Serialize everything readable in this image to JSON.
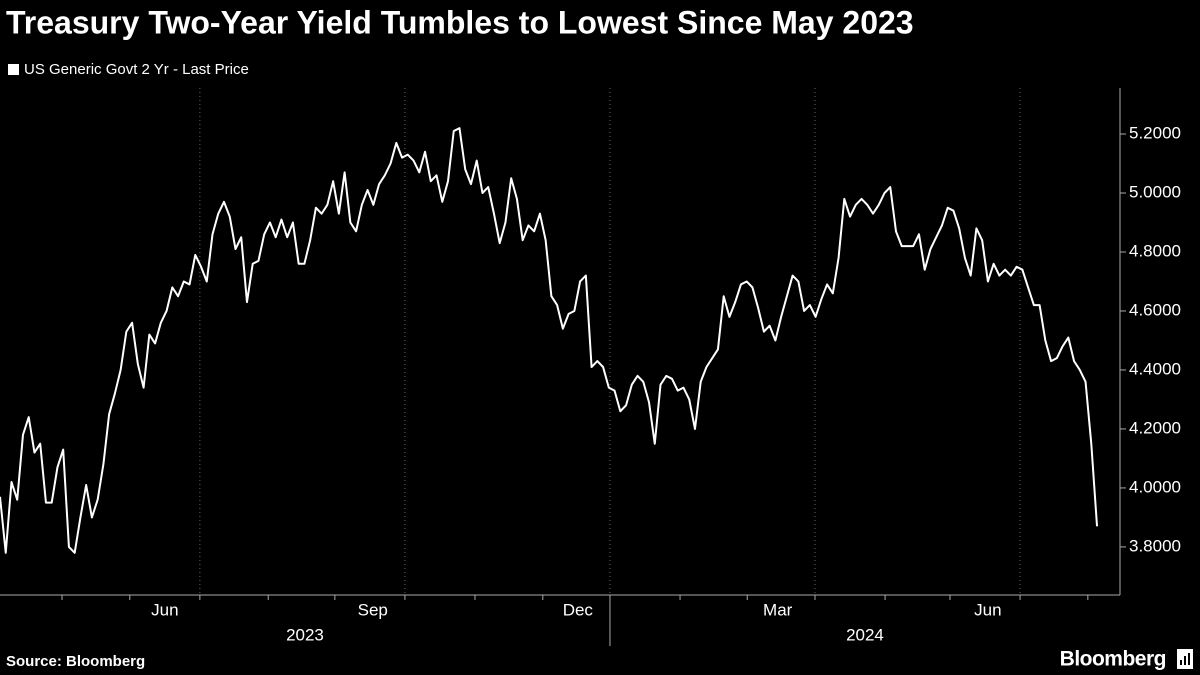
{
  "chart_data": {
    "type": "line",
    "title": "Treasury Two-Year Yield Tumbles to Lowest Since May 2023",
    "series": [
      {
        "name": "US Generic Govt 2 Yr - Last Price",
        "color": "#ffffff",
        "values": [
          3.97,
          3.78,
          4.02,
          3.96,
          4.18,
          4.24,
          4.12,
          4.15,
          3.95,
          3.95,
          4.07,
          4.13,
          3.8,
          3.78,
          3.9,
          4.01,
          3.9,
          3.96,
          4.08,
          4.25,
          4.32,
          4.4,
          4.53,
          4.56,
          4.42,
          4.34,
          4.52,
          4.49,
          4.56,
          4.6,
          4.68,
          4.65,
          4.7,
          4.69,
          4.79,
          4.75,
          4.7,
          4.86,
          4.93,
          4.97,
          4.92,
          4.81,
          4.85,
          4.63,
          4.76,
          4.77,
          4.86,
          4.9,
          4.85,
          4.91,
          4.85,
          4.9,
          4.76,
          4.76,
          4.84,
          4.95,
          4.93,
          4.96,
          5.04,
          4.93,
          5.07,
          4.9,
          4.87,
          4.96,
          5.01,
          4.96,
          5.03,
          5.06,
          5.1,
          5.17,
          5.12,
          5.13,
          5.11,
          5.07,
          5.14,
          5.04,
          5.06,
          4.97,
          5.04,
          5.21,
          5.22,
          5.08,
          5.03,
          5.11,
          5.0,
          5.02,
          4.93,
          4.83,
          4.9,
          5.05,
          4.98,
          4.84,
          4.89,
          4.87,
          4.93,
          4.84,
          4.65,
          4.62,
          4.54,
          4.59,
          4.6,
          4.7,
          4.72,
          4.41,
          4.43,
          4.41,
          4.34,
          4.33,
          4.26,
          4.28,
          4.35,
          4.38,
          4.36,
          4.29,
          4.15,
          4.35,
          4.38,
          4.37,
          4.33,
          4.34,
          4.3,
          4.2,
          4.36,
          4.41,
          4.44,
          4.47,
          4.65,
          4.58,
          4.63,
          4.69,
          4.7,
          4.68,
          4.61,
          4.53,
          4.55,
          4.5,
          4.58,
          4.65,
          4.72,
          4.7,
          4.6,
          4.62,
          4.58,
          4.64,
          4.69,
          4.66,
          4.78,
          4.98,
          4.92,
          4.96,
          4.98,
          4.96,
          4.93,
          4.96,
          5.0,
          5.02,
          4.87,
          4.82,
          4.82,
          4.82,
          4.86,
          4.74,
          4.81,
          4.85,
          4.89,
          4.95,
          4.94,
          4.88,
          4.78,
          4.72,
          4.88,
          4.84,
          4.7,
          4.76,
          4.72,
          4.74,
          4.72,
          4.75,
          4.74,
          4.68,
          4.62,
          4.62,
          4.5,
          4.43,
          4.44,
          4.48,
          4.51,
          4.43,
          4.4,
          4.36,
          4.15,
          3.87
        ]
      }
    ],
    "xlim": [
      0,
      195
    ],
    "ylim": [
      3.637,
      5.356
    ],
    "yticks": [
      {
        "value": 3.8,
        "label": "3.8000"
      },
      {
        "value": 4.0,
        "label": "4.0000"
      },
      {
        "value": 4.2,
        "label": "4.2000"
      },
      {
        "value": 4.4,
        "label": "4.4000"
      },
      {
        "value": 4.6,
        "label": "4.6000"
      },
      {
        "value": 4.8,
        "label": "4.8000"
      },
      {
        "value": 5.0,
        "label": "5.0000"
      },
      {
        "value": 5.2,
        "label": "5.2000"
      }
    ],
    "xticks": [
      10.8,
      22.6,
      34.8,
      46.7,
      58.3,
      70.5,
      82.7,
      94.5,
      106.2,
      118.4,
      130.1,
      141.9,
      154.1,
      165.4,
      177.6,
      189.4
    ],
    "xgrid": [
      34.8,
      70.5,
      106.2,
      141.9,
      177.6
    ],
    "month_labels": [
      {
        "value": 28.7,
        "label": "Jun"
      },
      {
        "value": 64.9,
        "label": "Sep"
      },
      {
        "value": 100.6,
        "label": "Dec"
      },
      {
        "value": 135.4,
        "label": "Mar"
      },
      {
        "value": 172.0,
        "label": "Jun"
      }
    ],
    "year_labels": [
      {
        "value": 53.1,
        "label": "2023"
      },
      {
        "value": 150.6,
        "label": "2024"
      }
    ],
    "year_divider": 106.2,
    "source": "Source: Bloomberg",
    "brand": "Bloomberg"
  }
}
